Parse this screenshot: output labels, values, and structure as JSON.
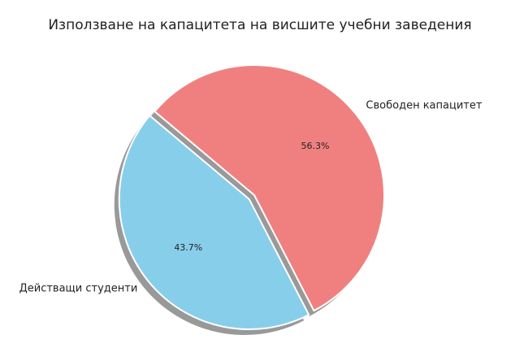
{
  "chart_data": {
    "type": "pie",
    "title": "Използване на капацитета на висшите учебни заведения",
    "categories": [
      "Действащи студенти",
      "Свободен капацитет"
    ],
    "values": [
      43.7,
      56.3
    ],
    "value_labels": [
      "43.7%",
      "56.3%"
    ],
    "colors": [
      "#87ceeb",
      "#f08080"
    ],
    "startangle": 140,
    "explode": [
      0.05,
      0
    ],
    "shadow": true
  }
}
